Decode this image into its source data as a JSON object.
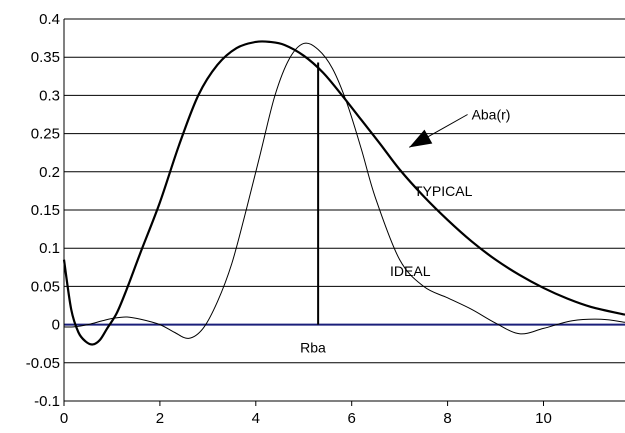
{
  "chart_data": {
    "type": "line",
    "xlim": [
      0,
      11.7
    ],
    "ylim": [
      -0.1,
      0.4
    ],
    "x_ticks": [
      0,
      2,
      4,
      6,
      8,
      10
    ],
    "y_ticks": [
      -0.1,
      -0.05,
      0,
      0.05,
      0.1,
      0.15,
      0.2,
      0.25,
      0.3,
      0.35,
      0.4
    ],
    "x_tick_labels": [
      "0",
      "2",
      "4",
      "6",
      "8",
      "10"
    ],
    "y_tick_labels": [
      "-0.1",
      "-0.05",
      "0",
      "0.05",
      "0.1",
      "0.15",
      "0.2",
      "0.25",
      "0.3",
      "0.35",
      "0.4"
    ],
    "grid": "horizontal",
    "series": [
      {
        "name": "TYPICAL",
        "style": "thick",
        "x": [
          0,
          0.15,
          0.3,
          0.45,
          0.6,
          0.75,
          0.9,
          1.1,
          1.3,
          1.6,
          2.0,
          2.4,
          2.8,
          3.2,
          3.6,
          4.0,
          4.3,
          4.6,
          5.0,
          5.4,
          5.8,
          6.2,
          6.6,
          7.0,
          7.5,
          8.0,
          8.5,
          9.0,
          9.5,
          10.0,
          10.5,
          11.0,
          11.7
        ],
        "y": [
          0.085,
          0.02,
          -0.01,
          -0.022,
          -0.026,
          -0.02,
          -0.005,
          0.015,
          0.045,
          0.095,
          0.16,
          0.235,
          0.3,
          0.34,
          0.362,
          0.37,
          0.37,
          0.366,
          0.352,
          0.33,
          0.3,
          0.268,
          0.236,
          0.203,
          0.168,
          0.137,
          0.109,
          0.085,
          0.065,
          0.048,
          0.034,
          0.023,
          0.013
        ]
      },
      {
        "name": "IDEAL",
        "style": "thin",
        "x": [
          0,
          0.2,
          0.5,
          0.8,
          1.0,
          1.3,
          1.6,
          2.0,
          2.3,
          2.6,
          2.9,
          3.2,
          3.5,
          3.8,
          4.1,
          4.4,
          4.7,
          5.0,
          5.3,
          5.6,
          5.9,
          6.2,
          6.5,
          7.0,
          7.5,
          8.0,
          8.5,
          9.0,
          9.5,
          10.0,
          10.6,
          11.2,
          11.7
        ],
        "y": [
          -0.003,
          -0.003,
          0,
          0.005,
          0.008,
          0.01,
          0.007,
          0,
          -0.01,
          -0.018,
          -0.005,
          0.03,
          0.08,
          0.15,
          0.225,
          0.3,
          0.348,
          0.368,
          0.36,
          0.335,
          0.29,
          0.23,
          0.165,
          0.085,
          0.05,
          0.035,
          0.02,
          0.002,
          -0.012,
          -0.005,
          0.005,
          0.007,
          0.003
        ]
      }
    ],
    "vertical_marker": {
      "x": 5.3,
      "y_top": 0.343,
      "label": "Rba"
    },
    "annotations": [
      {
        "text": "Aba(r)",
        "x": 8.5,
        "y": 0.275,
        "arrow_to_x": 7.2,
        "arrow_to_y": 0.232
      },
      {
        "text": "TYPICAL",
        "x": 7.3,
        "y": 0.175
      },
      {
        "text": "IDEAL",
        "x": 6.8,
        "y": 0.07
      }
    ]
  }
}
